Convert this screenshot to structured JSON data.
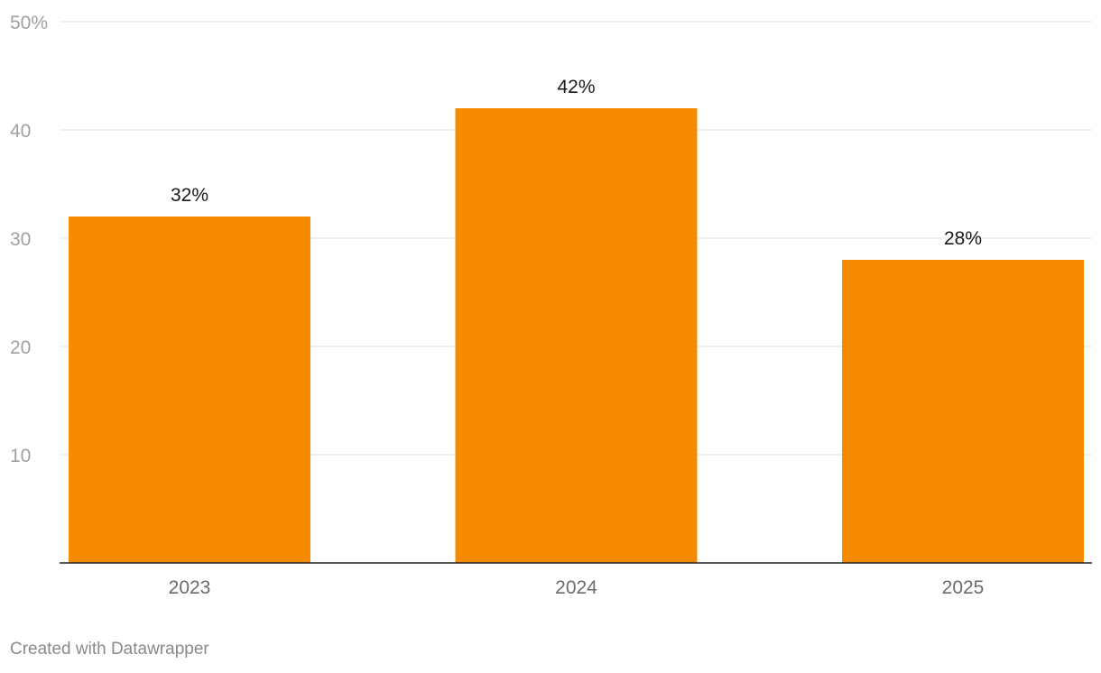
{
  "chart_data": {
    "type": "bar",
    "categories": [
      "2023",
      "2024",
      "2025"
    ],
    "values": [
      32,
      42,
      28
    ],
    "data_labels": [
      "32%",
      "42%",
      "28%"
    ],
    "y_ticks": [
      {
        "value": 10,
        "label": "10"
      },
      {
        "value": 20,
        "label": "20"
      },
      {
        "value": 30,
        "label": "30"
      },
      {
        "value": 40,
        "label": "40"
      },
      {
        "value": 50,
        "label": "50%"
      }
    ],
    "ylim": [
      0,
      50
    ],
    "grid": true,
    "bar_color": "#f68b00"
  },
  "footer": {
    "credit": "Created with Datawrapper"
  }
}
